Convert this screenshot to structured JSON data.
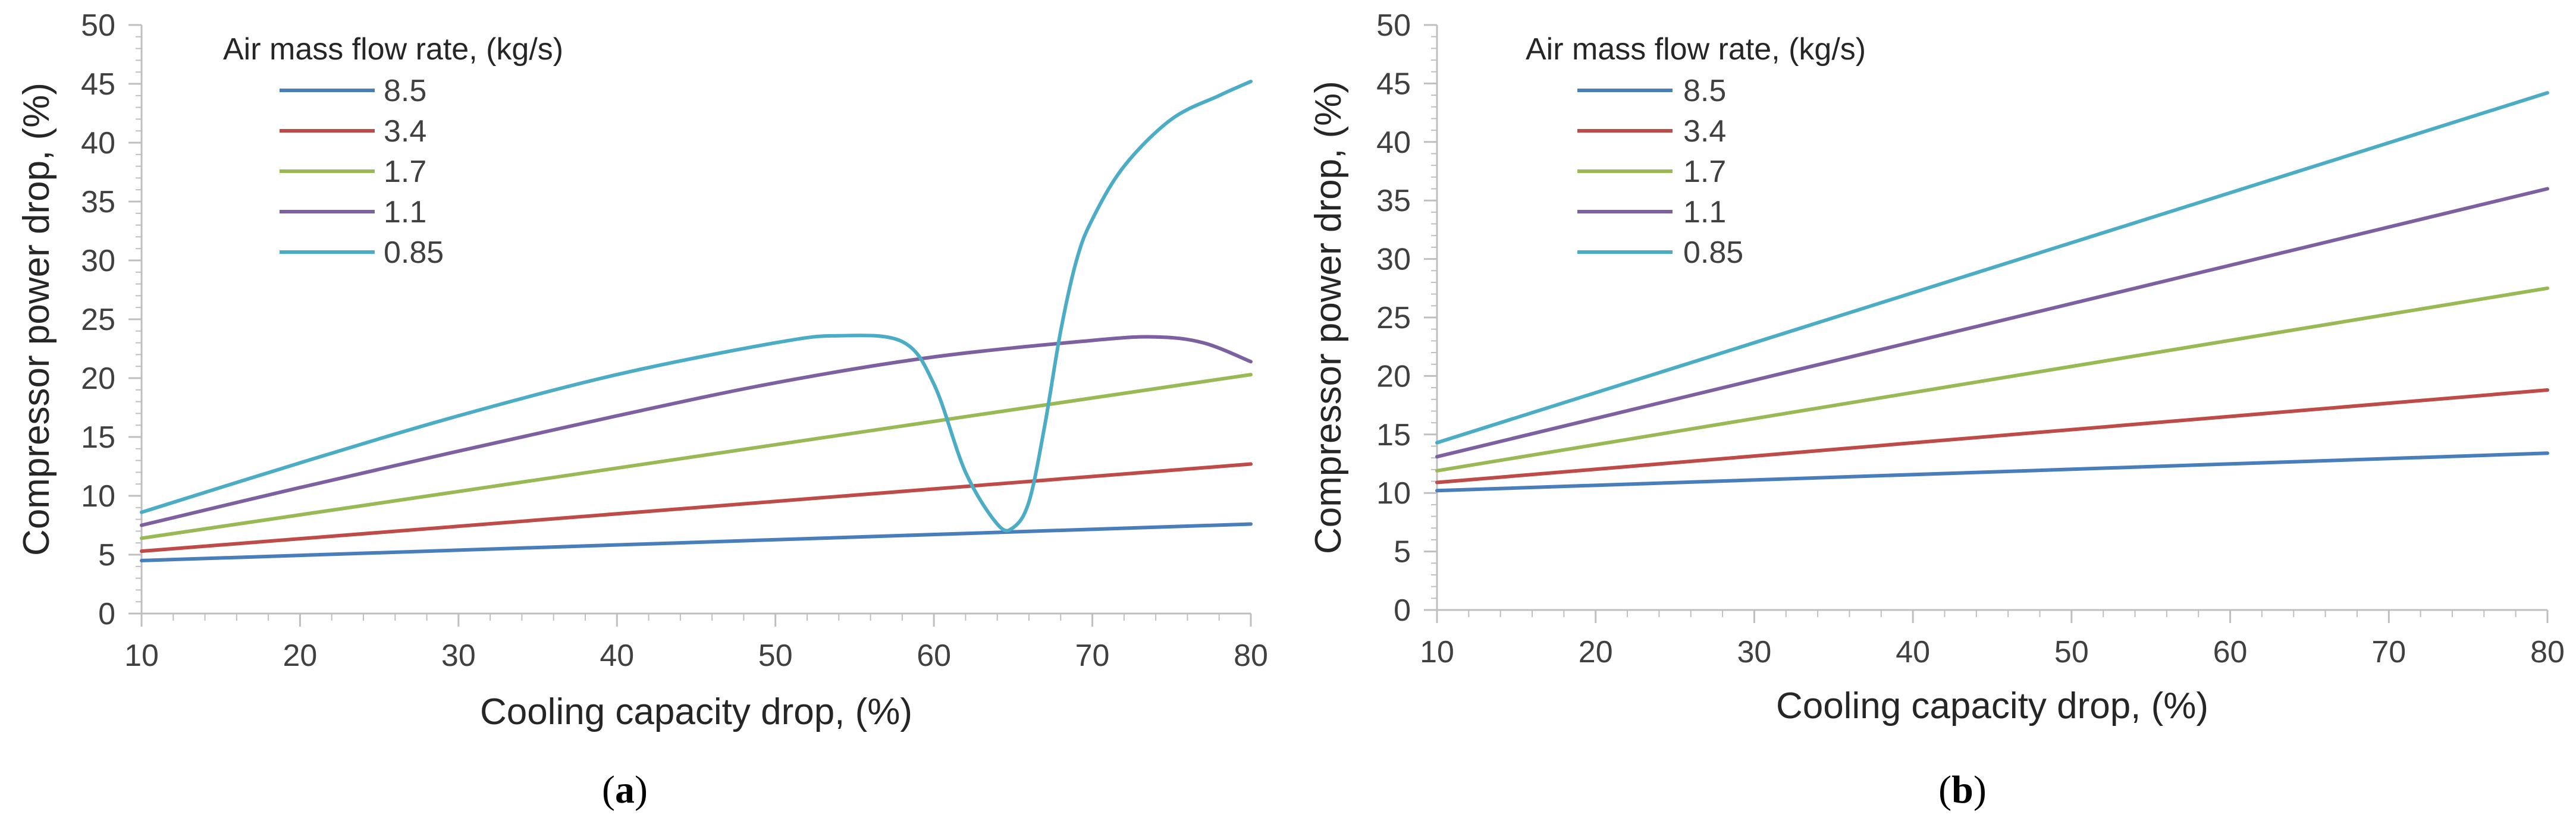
{
  "chart_data": [
    {
      "type": "line",
      "panel_label": "a",
      "title": "",
      "xlabel": "Cooling capacity drop, (%)",
      "ylabel": "Compressor power drop, (%)",
      "xlim": [
        10,
        80
      ],
      "ylim": [
        0,
        50
      ],
      "xticks": [
        10,
        20,
        30,
        40,
        50,
        60,
        70,
        80
      ],
      "yticks": [
        0,
        5,
        10,
        15,
        20,
        25,
        30,
        35,
        40,
        45,
        50
      ],
      "grid": false,
      "legend_title": "Air mass flow rate, (kg/s)",
      "legend_position": "top-left",
      "series": [
        {
          "name": "8.5",
          "color": "#4a7ebb",
          "x": [
            10,
            80
          ],
          "y": [
            4.5,
            7.6
          ]
        },
        {
          "name": "3.4",
          "color": "#be4b48",
          "x": [
            10,
            80
          ],
          "y": [
            5.3,
            12.7
          ]
        },
        {
          "name": "1.7",
          "color": "#98b954",
          "x": [
            10,
            80
          ],
          "y": [
            6.4,
            20.3
          ]
        },
        {
          "name": "1.1",
          "color": "#7d60a0",
          "x": [
            10,
            20,
            30,
            40,
            50,
            60,
            70,
            74,
            77,
            80
          ],
          "y": [
            7.5,
            10.7,
            13.8,
            16.8,
            19.6,
            21.8,
            23.2,
            23.5,
            23.0,
            21.4
          ]
        },
        {
          "name": "0.85",
          "color": "#4bacc6",
          "x": [
            10,
            20,
            30,
            40,
            50,
            54,
            58,
            60,
            62,
            64,
            65,
            66,
            67,
            68,
            69,
            70,
            72,
            75,
            78,
            80
          ],
          "y": [
            8.6,
            12.8,
            16.8,
            20.3,
            23.0,
            23.6,
            23.1,
            19.5,
            12.0,
            7.6,
            7.3,
            9.5,
            16.0,
            24.0,
            30.0,
            33.5,
            38.0,
            42.0,
            44.0,
            45.2
          ]
        }
      ]
    },
    {
      "type": "line",
      "panel_label": "b",
      "title": "",
      "xlabel": "Cooling capacity drop, (%)",
      "ylabel": "Compressor power drop, (%)",
      "xlim": [
        10,
        80
      ],
      "ylim": [
        0,
        50
      ],
      "xticks": [
        10,
        20,
        30,
        40,
        50,
        60,
        70,
        80
      ],
      "yticks": [
        0,
        5,
        10,
        15,
        20,
        25,
        30,
        35,
        40,
        45,
        50
      ],
      "grid": false,
      "legend_title": "Air mass flow rate, (kg/s)",
      "legend_position": "top-left",
      "series": [
        {
          "name": "8.5",
          "color": "#4a7ebb",
          "x": [
            10,
            80
          ],
          "y": [
            10.2,
            13.4
          ]
        },
        {
          "name": "3.4",
          "color": "#be4b48",
          "x": [
            10,
            80
          ],
          "y": [
            10.9,
            18.8
          ]
        },
        {
          "name": "1.7",
          "color": "#98b954",
          "x": [
            10,
            80
          ],
          "y": [
            11.9,
            27.5
          ]
        },
        {
          "name": "1.1",
          "color": "#7d60a0",
          "x": [
            10,
            80
          ],
          "y": [
            13.1,
            36.0
          ]
        },
        {
          "name": "0.85",
          "color": "#4bacc6",
          "x": [
            10,
            80
          ],
          "y": [
            14.3,
            44.2
          ]
        }
      ]
    }
  ]
}
